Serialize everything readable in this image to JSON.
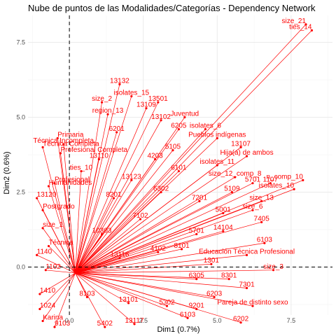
{
  "chart_data": {
    "type": "scatter",
    "title": "Nube de puntos de las Modalidades/Categorías - Dependency Network",
    "xlabel": "Dim1 (0.7%)",
    "ylabel": "Dim2 (0.6%)",
    "xlim": [
      -1.4,
      8.9
    ],
    "ylim": [
      -1.6,
      8.4
    ],
    "xticks": [
      0.0,
      2.5,
      5.0,
      7.5
    ],
    "xtick_labels": [
      "0.0",
      "2.5",
      "5.0",
      "7.5"
    ],
    "yticks": [
      0.0,
      2.5,
      5.0,
      7.5
    ],
    "ytick_labels": [
      "0.0",
      "2.5",
      "5.0",
      "7.5"
    ],
    "grid": true,
    "reference_lines": {
      "x": 0,
      "y": 0
    },
    "hub": {
      "x": 0.2,
      "y": -0.2
    },
    "points": [
      {
        "label": "size_21",
        "x": 8.0,
        "y": 8.1
      },
      {
        "label": "ties_14",
        "x": 8.2,
        "y": 7.9
      },
      {
        "label": "n_comp_10",
        "x": 7.9,
        "y": 2.9
      },
      {
        "label": "isolates_10",
        "x": 7.6,
        "y": 2.6
      },
      {
        "label": "13132",
        "x": 1.7,
        "y": 6.1
      },
      {
        "label": "isolates_15",
        "x": 2.1,
        "y": 5.7
      },
      {
        "label": "size_2",
        "x": 1.1,
        "y": 5.5
      },
      {
        "label": "13501",
        "x": 3.0,
        "y": 5.5
      },
      {
        "label": "region_13",
        "x": 1.3,
        "y": 5.1
      },
      {
        "label": "13109",
        "x": 2.6,
        "y": 5.3
      },
      {
        "label": "13102",
        "x": 3.1,
        "y": 4.9
      },
      {
        "label": "Juventud",
        "x": 3.9,
        "y": 5.0
      },
      {
        "label": "isolates_6",
        "x": 4.6,
        "y": 4.6
      },
      {
        "label": "6205",
        "x": 3.7,
        "y": 4.6
      },
      {
        "label": "Pueblos indígenas",
        "x": 5.0,
        "y": 4.3
      },
      {
        "label": "13107",
        "x": 5.8,
        "y": 4.0
      },
      {
        "label": "Hija(a) de ambos",
        "x": 6.0,
        "y": 3.7
      },
      {
        "label": "isolates_11",
        "x": 5.0,
        "y": 3.4
      },
      {
        "label": "size_12_comp_8",
        "x": 5.6,
        "y": 3.0
      },
      {
        "label": "5701",
        "x": 6.2,
        "y": 2.8
      },
      {
        "label": "1107",
        "x": 6.8,
        "y": 2.8
      },
      {
        "label": "size_13",
        "x": 6.5,
        "y": 2.2
      },
      {
        "label": "size_6",
        "x": 6.2,
        "y": 1.9
      },
      {
        "label": "7405",
        "x": 6.5,
        "y": 1.5
      },
      {
        "label": "6103",
        "x": 6.6,
        "y": 0.8
      },
      {
        "label": "Educación Técnica Profesional",
        "x": 6.0,
        "y": 0.4
      },
      {
        "label": "size_3",
        "x": 6.9,
        "y": -0.1
      },
      {
        "label": "8301",
        "x": 5.4,
        "y": -0.4
      },
      {
        "label": "7301",
        "x": 6.0,
        "y": -0.7
      },
      {
        "label": "Pareja de distinto sexo",
        "x": 6.2,
        "y": -1.3
      },
      {
        "label": "6202",
        "x": 5.8,
        "y": -1.85
      },
      {
        "label": "size_1",
        "x": -0.9,
        "y": 1.3
      },
      {
        "label": "Técnica",
        "x": -0.7,
        "y": 0.7
      },
      {
        "label": "Profesional Completa",
        "x": -0.3,
        "y": 3.8
      },
      {
        "label": "Humanidades",
        "x": -0.7,
        "y": 2.7
      },
      {
        "label": "Primaria",
        "x": -0.4,
        "y": 4.3
      },
      {
        "label": "Técnica Completa",
        "x": -0.9,
        "y": 4.0
      },
      {
        "label": "13120",
        "x": -1.1,
        "y": 2.3
      },
      {
        "label": "Postgrado",
        "x": -0.9,
        "y": 1.9
      },
      {
        "label": "1140",
        "x": -1.1,
        "y": 0.4
      },
      {
        "label": "1410",
        "x": -1.0,
        "y": -0.9
      },
      {
        "label": "1102",
        "x": -0.8,
        "y": -0.1
      },
      {
        "label": "1024",
        "x": -1.0,
        "y": -1.4
      },
      {
        "label": "Karina",
        "x": -0.9,
        "y": -1.8
      },
      {
        "label": "Profesional",
        "x": -0.5,
        "y": 2.8
      },
      {
        "label": "Técnica Incompleta",
        "x": -0.2,
        "y": 4.1
      },
      {
        "label": "ties_10",
        "x": 0.4,
        "y": 3.2
      },
      {
        "label": "6201",
        "x": 1.6,
        "y": 4.5
      },
      {
        "label": "6302",
        "x": 3.1,
        "y": 2.5
      },
      {
        "label": "5001",
        "x": 5.2,
        "y": 1.8
      },
      {
        "label": "6305",
        "x": 4.3,
        "y": -0.4
      },
      {
        "label": "6203",
        "x": 4.9,
        "y": -1.0
      },
      {
        "label": "6103",
        "x": 4.0,
        "y": -1.7
      },
      {
        "label": "13117",
        "x": 2.2,
        "y": -1.9
      },
      {
        "label": "5402",
        "x": 1.2,
        "y": -2.0
      },
      {
        "label": "9103",
        "x": -0.5,
        "y": -2.0
      },
      {
        "label": "5701",
        "x": 4.3,
        "y": 1.1
      },
      {
        "label": "1301",
        "x": 4.8,
        "y": 0.1
      },
      {
        "label": "8101",
        "x": 3.8,
        "y": 0.6
      },
      {
        "label": "5105",
        "x": 3.5,
        "y": 3.9
      },
      {
        "label": "4203",
        "x": 2.9,
        "y": 3.6
      },
      {
        "label": "7102",
        "x": 2.4,
        "y": 1.6
      },
      {
        "label": "10303",
        "x": 1.1,
        "y": 1.1
      },
      {
        "label": "9201",
        "x": 4.3,
        "y": -1.4
      },
      {
        "label": "5302",
        "x": 3.3,
        "y": -1.3
      },
      {
        "label": "13101",
        "x": 2.0,
        "y": -1.2
      },
      {
        "label": "8201",
        "x": 1.5,
        "y": 2.3
      },
      {
        "label": "6101",
        "x": 3.7,
        "y": 3.2
      },
      {
        "label": "14104",
        "x": 5.2,
        "y": 1.2
      },
      {
        "label": "5109",
        "x": 5.5,
        "y": 2.5
      },
      {
        "label": "7201",
        "x": 4.4,
        "y": 2.2
      },
      {
        "label": "13123",
        "x": 2.1,
        "y": 2.9
      },
      {
        "label": "13110",
        "x": 1.0,
        "y": 3.6
      },
      {
        "label": "8103",
        "x": 0.6,
        "y": -1.0
      },
      {
        "label": "4102",
        "x": 3.0,
        "y": 0.5
      },
      {
        "label": "13116",
        "x": 1.7,
        "y": 0.3
      }
    ]
  }
}
